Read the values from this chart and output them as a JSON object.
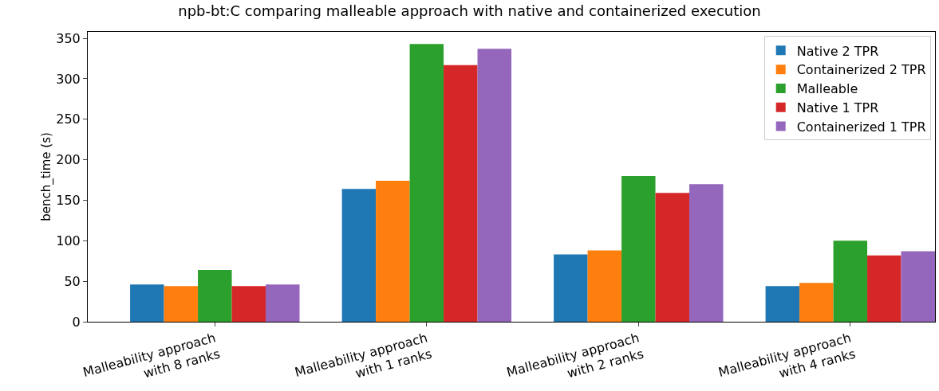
{
  "chart_data": {
    "type": "bar",
    "title": "npb-bt:C comparing malleable approach with native and containerized execution",
    "ylabel": "bench_time (s)",
    "categories": [
      "Malleability approach\nwith 8 ranks",
      "Malleability approach\nwith 1 ranks",
      "Malleability approach\nwith 2 ranks",
      "Malleability approach\nwith 4 ranks"
    ],
    "series": [
      {
        "name": "Native 2 TPR",
        "color": "#1f77b4",
        "values": [
          46,
          164,
          83,
          44
        ]
      },
      {
        "name": "Containerized 2 TPR",
        "color": "#ff7f0e",
        "values": [
          44,
          174,
          88,
          48
        ]
      },
      {
        "name": "Malleable",
        "color": "#2ca02c",
        "values": [
          64,
          343,
          180,
          100
        ]
      },
      {
        "name": "Native 1 TPR",
        "color": "#d62728",
        "values": [
          44,
          317,
          159,
          82
        ]
      },
      {
        "name": "Containerized 1 TPR",
        "color": "#9467bd",
        "values": [
          46,
          337,
          170,
          87
        ]
      }
    ],
    "ylim": [
      0,
      358
    ],
    "yticks": [
      0,
      50,
      100,
      150,
      200,
      250,
      300,
      350
    ],
    "grid": false,
    "legend": "top right"
  }
}
